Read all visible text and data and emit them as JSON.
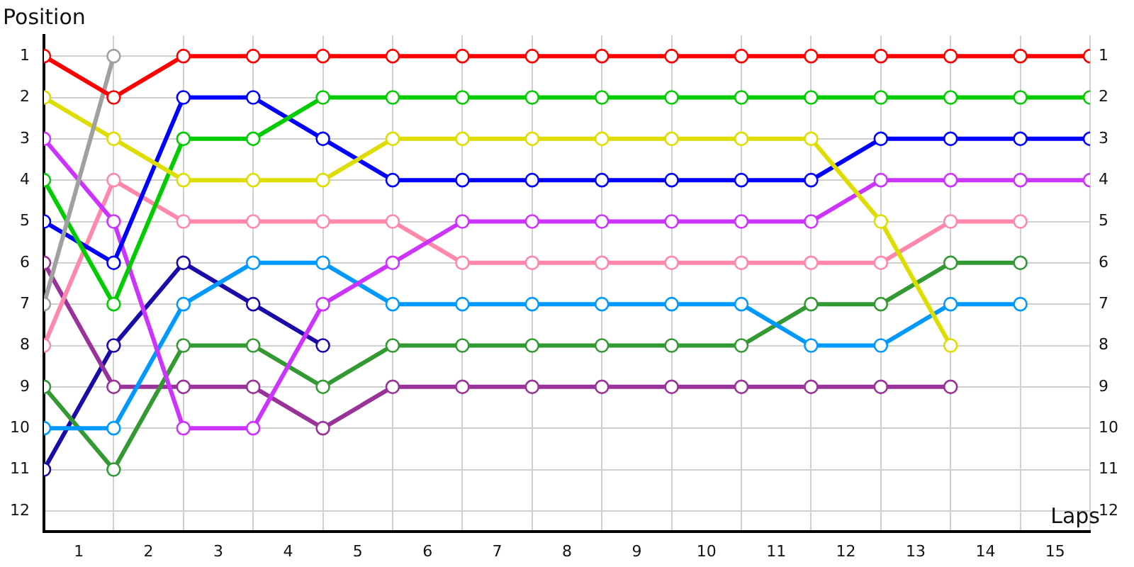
{
  "chart_data": {
    "type": "line",
    "xlabel": "Laps",
    "ylabel": "Position",
    "x": [
      0,
      1,
      2,
      3,
      4,
      5,
      6,
      7,
      8,
      9,
      10,
      11,
      12,
      13,
      14,
      15
    ],
    "xlim": [
      0,
      15
    ],
    "xticks": [
      {
        "value": 0,
        "label": null
      },
      {
        "value": 0.5,
        "label": "1"
      },
      {
        "value": 1,
        "label": null
      },
      {
        "value": 1.5,
        "label": "2"
      },
      {
        "value": 2,
        "label": null
      },
      {
        "value": 2.5,
        "label": "3"
      },
      {
        "value": 3,
        "label": null
      },
      {
        "value": 3.5,
        "label": "4"
      },
      {
        "value": 4,
        "label": null
      },
      {
        "value": 4.5,
        "label": "5"
      },
      {
        "value": 5,
        "label": null
      },
      {
        "value": 5.5,
        "label": "6"
      },
      {
        "value": 6,
        "label": null
      },
      {
        "value": 6.5,
        "label": "7"
      },
      {
        "value": 7,
        "label": null
      },
      {
        "value": 7.5,
        "label": "8"
      },
      {
        "value": 8,
        "label": null
      },
      {
        "value": 8.5,
        "label": "9"
      },
      {
        "value": 9,
        "label": null
      },
      {
        "value": 9.5,
        "label": "10"
      },
      {
        "value": 10,
        "label": null
      },
      {
        "value": 10.5,
        "label": "11"
      },
      {
        "value": 11,
        "label": null
      },
      {
        "value": 11.5,
        "label": "12"
      },
      {
        "value": 12,
        "label": null
      },
      {
        "value": 12.5,
        "label": "13"
      },
      {
        "value": 13,
        "label": null
      },
      {
        "value": 13.5,
        "label": "14"
      },
      {
        "value": 14,
        "label": null
      },
      {
        "value": 14.5,
        "label": "15"
      },
      {
        "value": 15,
        "label": null
      }
    ],
    "ylim": [
      12.5,
      0.5
    ],
    "yticks": [
      1,
      2,
      3,
      4,
      5,
      6,
      7,
      8,
      9,
      10,
      11,
      12
    ],
    "y2lim": [
      12.5,
      0.5
    ],
    "y2ticks": [
      1,
      2,
      3,
      4,
      5,
      6,
      7,
      8,
      9,
      10,
      11,
      12
    ],
    "grid": true,
    "legend": false,
    "marker": "circle",
    "line_style": "solid",
    "series": [
      {
        "color": "#ff0000",
        "values": [
          1,
          2,
          1,
          1,
          1,
          1,
          1,
          1,
          1,
          1,
          1,
          1,
          1,
          1,
          1,
          1
        ]
      },
      {
        "color": "#a0a0a0",
        "values": [
          7,
          1,
          null,
          null,
          null,
          null,
          null,
          null,
          null,
          null,
          null,
          null,
          null,
          null,
          null,
          null
        ]
      },
      {
        "color": "#dddd00",
        "values": [
          2,
          3,
          4,
          4,
          4,
          3,
          3,
          3,
          3,
          3,
          3,
          3,
          5,
          8,
          null,
          null
        ]
      },
      {
        "color": "#00cc00",
        "values": [
          4,
          7,
          3,
          3,
          2,
          2,
          2,
          2,
          2,
          2,
          2,
          2,
          2,
          2,
          2,
          2
        ]
      },
      {
        "color": "#0000ff",
        "values": [
          5,
          6,
          2,
          2,
          3,
          4,
          4,
          4,
          4,
          4,
          4,
          4,
          3,
          3,
          3,
          3
        ]
      },
      {
        "color": "#cc33ff",
        "values": [
          3,
          5,
          10,
          10,
          7,
          6,
          5,
          5,
          5,
          5,
          5,
          5,
          4,
          4,
          4,
          4
        ]
      },
      {
        "color": "#ff88aa",
        "values": [
          8,
          4,
          5,
          5,
          5,
          5,
          6,
          6,
          6,
          6,
          6,
          6,
          6,
          5,
          5,
          null
        ]
      },
      {
        "color": "#0099ff",
        "values": [
          10,
          10,
          7,
          6,
          6,
          7,
          7,
          7,
          7,
          7,
          7,
          8,
          8,
          7,
          7,
          null
        ]
      },
      {
        "color": "#339933",
        "values": [
          9,
          11,
          8,
          8,
          9,
          8,
          8,
          8,
          8,
          8,
          8,
          7,
          7,
          6,
          6,
          null
        ]
      },
      {
        "color": "#993399",
        "values": [
          6,
          9,
          9,
          9,
          10,
          9,
          9,
          9,
          9,
          9,
          9,
          9,
          9,
          9,
          null,
          null
        ]
      },
      {
        "color": "#1a0aaa",
        "values": [
          11,
          8,
          6,
          7,
          8,
          null,
          null,
          null,
          null,
          null,
          null,
          null,
          null,
          null,
          null,
          null
        ]
      }
    ]
  }
}
